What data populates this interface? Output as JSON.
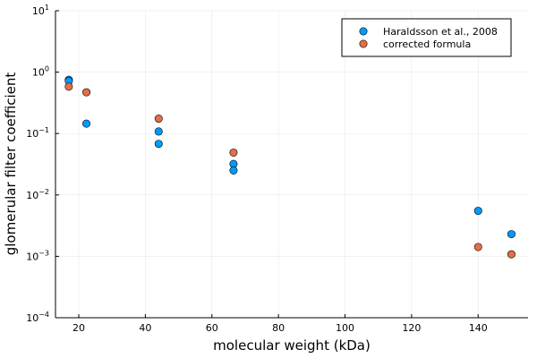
{
  "chart_data": {
    "type": "scatter",
    "xlabel": "molecular weight (kDa)",
    "ylabel": "glomerular filter coefficient",
    "xlim": [
      13,
      155
    ],
    "ylim": [
      0.0001,
      10
    ],
    "yscale": "log",
    "xticks": [
      20,
      40,
      60,
      80,
      100,
      120,
      140
    ],
    "yticks": [
      {
        "value": 0.0001,
        "base": "10",
        "exp": "−4"
      },
      {
        "value": 0.001,
        "base": "10",
        "exp": "−3"
      },
      {
        "value": 0.01,
        "base": "10",
        "exp": "−2"
      },
      {
        "value": 0.1,
        "base": "10",
        "exp": "−1"
      },
      {
        "value": 1,
        "base": "10",
        "exp": "0"
      },
      {
        "value": 10,
        "base": "10",
        "exp": "1"
      }
    ],
    "grid": true,
    "legend_position": "top-right",
    "series": [
      {
        "name": "Haraldsson et al., 2008",
        "color": "#009AFA",
        "points": [
          {
            "x": 17,
            "y": 0.75
          },
          {
            "x": 17,
            "y": 0.72
          },
          {
            "x": 22.3,
            "y": 0.145
          },
          {
            "x": 44,
            "y": 0.108
          },
          {
            "x": 44,
            "y": 0.068
          },
          {
            "x": 66.5,
            "y": 0.032
          },
          {
            "x": 66.5,
            "y": 0.025
          },
          {
            "x": 140,
            "y": 0.0055
          },
          {
            "x": 150,
            "y": 0.0023
          }
        ]
      },
      {
        "name": "corrected formula",
        "color": "#E26F46",
        "points": [
          {
            "x": 17,
            "y": 0.58
          },
          {
            "x": 22.3,
            "y": 0.47
          },
          {
            "x": 44,
            "y": 0.175
          },
          {
            "x": 66.5,
            "y": 0.049
          },
          {
            "x": 140,
            "y": 0.00142
          },
          {
            "x": 150,
            "y": 0.00108
          }
        ]
      }
    ]
  }
}
